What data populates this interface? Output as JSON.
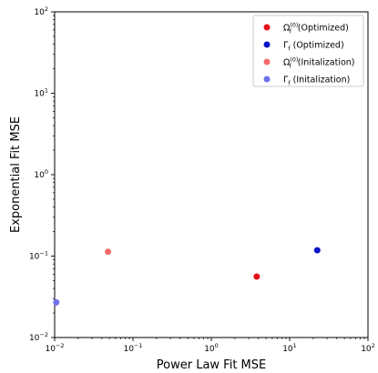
{
  "chart_data": {
    "type": "scatter",
    "xlabel": "Power Law Fit MSE",
    "ylabel": "Exponential Fit MSE",
    "xscale": "log",
    "yscale": "log",
    "xlim": [
      0.01,
      100
    ],
    "ylim": [
      0.01,
      100
    ],
    "x_ticks": [
      {
        "base": "10",
        "exp": "−2",
        "value": 0.01
      },
      {
        "base": "10",
        "exp": "−1",
        "value": 0.1
      },
      {
        "base": "10",
        "exp": "0",
        "value": 1
      },
      {
        "base": "10",
        "exp": "1",
        "value": 10
      },
      {
        "base": "10",
        "exp": "2",
        "value": 100
      }
    ],
    "y_ticks": [
      {
        "base": "10",
        "exp": "−2",
        "value": 0.01
      },
      {
        "base": "10",
        "exp": "−1",
        "value": 0.1
      },
      {
        "base": "10",
        "exp": "0",
        "value": 1
      },
      {
        "base": "10",
        "exp": "1",
        "value": 10
      },
      {
        "base": "10",
        "exp": "2",
        "value": 100
      }
    ],
    "grid": false,
    "legend_position": "top-right",
    "series": [
      {
        "symbol": "Ω",
        "sub": "f",
        "sup": "(0)",
        "suffix": " (Optimized)",
        "color": "#e8101a",
        "opacity": 1.0,
        "points": [
          {
            "x": 3.8,
            "y": 0.056
          }
        ]
      },
      {
        "symbol": "Γ",
        "sub": "f",
        "sup": "",
        "suffix": " (Optimized)",
        "color": "#0a14c8",
        "opacity": 1.0,
        "points": [
          {
            "x": 22.5,
            "y": 0.118
          }
        ]
      },
      {
        "symbol": "Ω",
        "sub": "f",
        "sup": "(0)",
        "suffix": " (Initalization)",
        "color": "#f26a6a",
        "opacity": 1.0,
        "points": [
          {
            "x": 0.048,
            "y": 0.113
          }
        ]
      },
      {
        "symbol": "Γ",
        "sub": "f",
        "sup": "",
        "suffix": " (Initalization)",
        "color": "#6f72ee",
        "opacity": 1.0,
        "points": [
          {
            "x": 0.0105,
            "y": 0.027
          }
        ]
      }
    ]
  }
}
